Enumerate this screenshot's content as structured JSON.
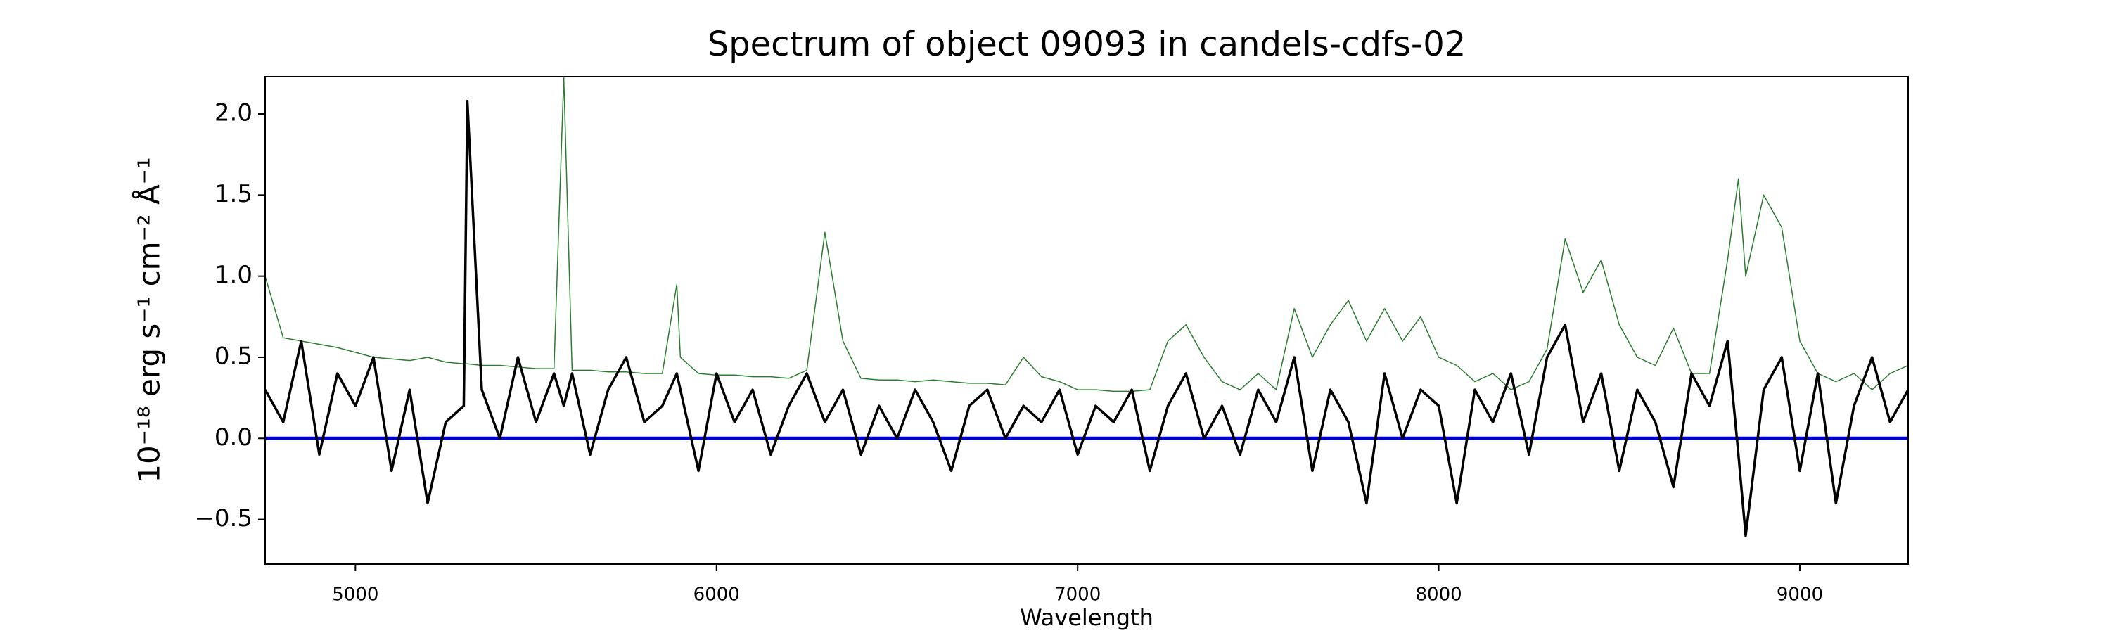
{
  "chart_data": {
    "type": "line",
    "title": "Spectrum of object 09093 in candels-cdfs-02",
    "xlabel": "Wavelength",
    "ylabel": "10⁻¹⁸ erg s⁻¹ cm⁻² Å⁻¹",
    "x": [
      4750,
      4800,
      4850,
      4900,
      4950,
      5000,
      5050,
      5100,
      5150,
      5200,
      5250,
      5300,
      5310,
      5350,
      5400,
      5450,
      5500,
      5550,
      5577,
      5600,
      5650,
      5700,
      5750,
      5800,
      5850,
      5890,
      5900,
      5950,
      6000,
      6050,
      6100,
      6150,
      6200,
      6250,
      6300,
      6350,
      6400,
      6450,
      6500,
      6550,
      6600,
      6650,
      6700,
      6750,
      6800,
      6850,
      6900,
      6950,
      7000,
      7050,
      7100,
      7150,
      7200,
      7250,
      7300,
      7350,
      7400,
      7450,
      7500,
      7550,
      7600,
      7650,
      7700,
      7750,
      7800,
      7850,
      7900,
      7950,
      8000,
      8050,
      8100,
      8150,
      8200,
      8250,
      8300,
      8350,
      8400,
      8450,
      8500,
      8550,
      8600,
      8650,
      8700,
      8750,
      8800,
      8830,
      8850,
      8900,
      8950,
      9000,
      9050,
      9100,
      9150,
      9200,
      9250,
      9300
    ],
    "series": [
      {
        "color": "#2e7d32",
        "width": 1.5,
        "values": [
          1.0,
          0.62,
          0.6,
          0.58,
          0.56,
          0.53,
          0.5,
          0.49,
          0.48,
          0.5,
          0.47,
          0.46,
          0.46,
          0.45,
          0.45,
          0.44,
          0.43,
          0.43,
          2.23,
          0.42,
          0.42,
          0.41,
          0.41,
          0.4,
          0.4,
          0.95,
          0.5,
          0.4,
          0.39,
          0.39,
          0.38,
          0.38,
          0.37,
          0.42,
          1.27,
          0.6,
          0.37,
          0.36,
          0.36,
          0.35,
          0.36,
          0.35,
          0.34,
          0.34,
          0.33,
          0.5,
          0.38,
          0.35,
          0.3,
          0.3,
          0.29,
          0.29,
          0.3,
          0.6,
          0.7,
          0.5,
          0.35,
          0.3,
          0.4,
          0.3,
          0.8,
          0.5,
          0.7,
          0.85,
          0.6,
          0.8,
          0.6,
          0.75,
          0.5,
          0.45,
          0.35,
          0.4,
          0.3,
          0.35,
          0.55,
          1.23,
          0.9,
          1.1,
          0.7,
          0.5,
          0.45,
          0.68,
          0.4,
          0.4,
          1.1,
          1.6,
          1.0,
          1.5,
          1.3,
          0.6,
          0.4,
          0.35,
          0.4,
          0.3,
          0.4,
          0.45
        ]
      },
      {
        "color": "#0000cc",
        "width": 5,
        "x": [
          4750,
          9300
        ],
        "values": [
          0,
          0
        ]
      },
      {
        "color": "#000000",
        "width": 3.5,
        "values": [
          0.3,
          0.1,
          0.6,
          -0.1,
          0.4,
          0.2,
          0.5,
          -0.2,
          0.3,
          -0.4,
          0.1,
          0.2,
          2.08,
          0.3,
          0.0,
          0.5,
          0.1,
          0.4,
          0.2,
          0.4,
          -0.1,
          0.3,
          0.5,
          0.1,
          0.2,
          0.4,
          0.3,
          -0.2,
          0.4,
          0.1,
          0.3,
          -0.1,
          0.2,
          0.4,
          0.1,
          0.3,
          -0.1,
          0.2,
          0.0,
          0.3,
          0.1,
          -0.2,
          0.2,
          0.3,
          0.0,
          0.2,
          0.1,
          0.3,
          -0.1,
          0.2,
          0.1,
          0.3,
          -0.2,
          0.2,
          0.4,
          0.0,
          0.2,
          -0.1,
          0.3,
          0.1,
          0.5,
          -0.2,
          0.3,
          0.1,
          -0.4,
          0.4,
          0.0,
          0.3,
          0.2,
          -0.4,
          0.3,
          0.1,
          0.4,
          -0.1,
          0.5,
          0.7,
          0.1,
          0.4,
          -0.2,
          0.3,
          0.1,
          -0.3,
          0.4,
          0.2,
          0.6,
          -0.1,
          -0.6,
          0.3,
          0.5,
          -0.2,
          0.4,
          -0.4,
          0.2,
          0.5,
          0.1,
          0.3
        ]
      }
    ],
    "xlim": [
      4750,
      9300
    ],
    "ylim": [
      -0.775,
      2.23
    ],
    "xticks": [
      5000,
      6000,
      7000,
      8000,
      9000
    ],
    "yticks": [
      {
        "value": -0.5,
        "label": "−0.5"
      },
      {
        "value": 0,
        "label": "0.0"
      },
      0.5,
      {
        "value": 1,
        "label": "1.0"
      },
      1.5,
      {
        "value": 2,
        "label": "2.0"
      }
    ]
  }
}
